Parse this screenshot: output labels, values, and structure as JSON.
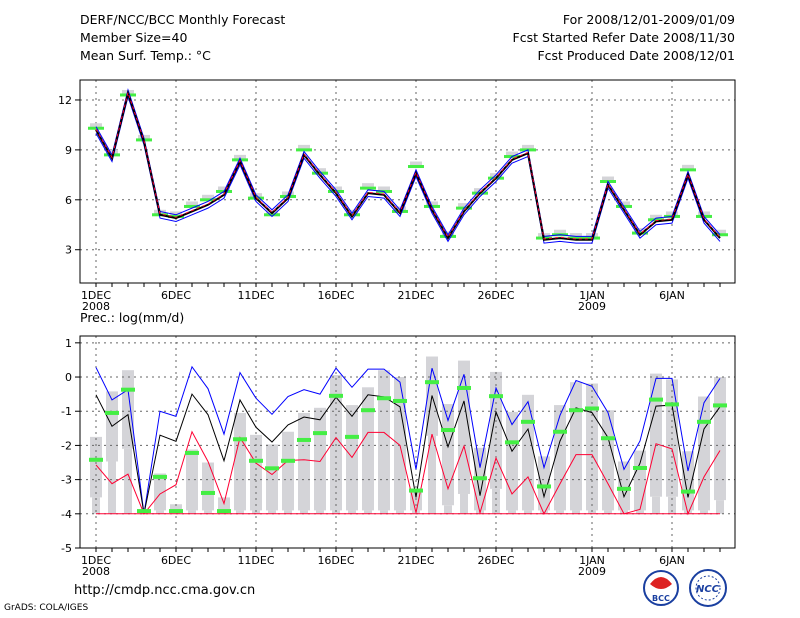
{
  "header": {
    "title": "DERF/NCC/BCC Monthly Forecast",
    "member_size": "Member Size=40",
    "variable": "Mean Surf. Temp.: °C",
    "period": "For 2008/12/01-2009/01/09",
    "started": "Fcst Started Refer Date 2008/11/30",
    "produced": "Fcst Produced Date 2008/12/01"
  },
  "footer": {
    "url": "http://cmdp.ncc.cma.gov.cn",
    "grads": "GrADS: COLA/IGES",
    "logo_bcc": "BCC",
    "logo_ncc": "NCC"
  },
  "colors": {
    "mean": "#000000",
    "spread": "#0000ff",
    "median": "#ff0033",
    "obs": "#44ee44",
    "bar": "#d4d4d8",
    "grid": "#666666"
  },
  "chart_data": [
    {
      "type": "line",
      "title": "Mean Surf. Temp.: °C",
      "x_ticks": [
        {
          "day": 0,
          "label": "1DEC",
          "sub": "2008"
        },
        {
          "day": 5,
          "label": "6DEC"
        },
        {
          "day": 10,
          "label": "11DEC"
        },
        {
          "day": 15,
          "label": "16DEC"
        },
        {
          "day": 20,
          "label": "21DEC"
        },
        {
          "day": 25,
          "label": "26DEC"
        },
        {
          "day": 31,
          "label": "1JAN",
          "sub": "2009"
        },
        {
          "day": 36,
          "label": "6JAN"
        }
      ],
      "y_ticks": [
        3,
        6,
        9,
        12
      ],
      "ylim": [
        1.0,
        13.2
      ],
      "grid": true,
      "series": [
        {
          "name": "ensemble-mean",
          "values": [
            10.2,
            8.5,
            12.4,
            9.5,
            5.1,
            4.9,
            5.3,
            5.7,
            6.3,
            8.3,
            6.1,
            5.2,
            6.1,
            8.7,
            7.5,
            6.4,
            5.0,
            6.4,
            6.3,
            5.2,
            7.6,
            5.4,
            3.7,
            5.3,
            6.4,
            7.3,
            8.4,
            8.8,
            3.6,
            3.7,
            3.6,
            3.6,
            6.9,
            5.4,
            3.9,
            4.7,
            4.8,
            7.5,
            4.8,
            3.7
          ]
        },
        {
          "name": "observed",
          "values": [
            10.3,
            8.7,
            12.3,
            9.6,
            5.1,
            5.0,
            5.6,
            6.0,
            6.5,
            8.4,
            6.1,
            5.1,
            6.2,
            9.0,
            7.6,
            6.5,
            5.1,
            6.7,
            6.5,
            5.3,
            8.0,
            5.6,
            3.8,
            5.5,
            6.4,
            7.3,
            8.6,
            9.0,
            3.7,
            3.9,
            3.7,
            3.7,
            7.1,
            5.6,
            4.0,
            4.8,
            5.0,
            7.8,
            5.0,
            3.9
          ]
        }
      ]
    },
    {
      "type": "line",
      "title": "Prec.: log(mm/d)",
      "x_ticks": [
        {
          "day": 0,
          "label": "1DEC",
          "sub": "2008"
        },
        {
          "day": 5,
          "label": "6DEC"
        },
        {
          "day": 10,
          "label": "11DEC"
        },
        {
          "day": 15,
          "label": "16DEC"
        },
        {
          "day": 20,
          "label": "21DEC"
        },
        {
          "day": 25,
          "label": "26DEC"
        },
        {
          "day": 31,
          "label": "1JAN",
          "sub": "2009"
        },
        {
          "day": 36,
          "label": "6JAN"
        }
      ],
      "y_ticks": [
        -5,
        -4,
        -3,
        -2,
        -1,
        0,
        1
      ],
      "ylim": [
        -5.0,
        1.2
      ],
      "grid": true,
      "baseline": -4,
      "series": [
        {
          "name": "upper",
          "values": [
            0.28,
            -0.67,
            -0.37,
            -4,
            -1.0,
            -1.15,
            0.3,
            -0.34,
            -1.67,
            0.13,
            -0.62,
            -1.09,
            -0.57,
            -0.37,
            -0.5,
            0.26,
            -0.3,
            0.23,
            0.23,
            -0.15,
            -2.7,
            0.26,
            -1.27,
            0.08,
            -2.65,
            -0.32,
            -1.39,
            -0.72,
            -2.65,
            -1.12,
            -0.1,
            -0.27,
            -1.04,
            -2.7,
            -1.87,
            -0.04,
            -0.04,
            -2.75,
            -0.75,
            -0.04
          ]
        },
        {
          "name": "mean",
          "values": [
            -0.52,
            -1.44,
            -1.1,
            -4,
            -1.7,
            -1.88,
            -0.5,
            -1.1,
            -2.45,
            -0.67,
            -1.47,
            -1.9,
            -1.4,
            -1.17,
            -1.25,
            -0.59,
            -1.15,
            -0.52,
            -0.58,
            -0.87,
            -3.52,
            -0.54,
            -2.04,
            -0.7,
            -3.47,
            -1.02,
            -2.17,
            -1.52,
            -3.5,
            -1.87,
            -0.9,
            -1.04,
            -1.77,
            -3.5,
            -2.52,
            -0.85,
            -0.82,
            -3.52,
            -1.52,
            -0.87
          ]
        },
        {
          "name": "lower",
          "values": [
            -2.57,
            -3.12,
            -2.84,
            -4,
            -3.42,
            -3.15,
            -1.6,
            -2.47,
            -3.7,
            -1.77,
            -2.52,
            -2.85,
            -2.44,
            -2.42,
            -2.47,
            -1.77,
            -2.35,
            -1.62,
            -1.62,
            -2.0,
            -3.97,
            -1.67,
            -3.27,
            -2.02,
            -3.97,
            -2.37,
            -3.42,
            -2.92,
            -4,
            -3.12,
            -2.27,
            -2.27,
            -3.12,
            -4,
            -3.87,
            -1.95,
            -2.1,
            -4,
            -2.92,
            -2.15
          ]
        },
        {
          "name": "observed",
          "values": [
            -2.42,
            -1.05,
            -0.37,
            -3.92,
            -2.92,
            -3.92,
            -2.22,
            -3.39,
            -3.92,
            -1.82,
            -2.45,
            -2.67,
            -2.45,
            -1.84,
            -1.64,
            -0.55,
            -1.75,
            -0.97,
            -0.62,
            -0.7,
            -3.32,
            -0.15,
            -1.55,
            -0.32,
            -2.96,
            -0.56,
            -1.91,
            -1.31,
            -3.2,
            -1.6,
            -0.97,
            -0.92,
            -1.79,
            -3.27,
            -2.66,
            -0.66,
            -0.8,
            -3.35,
            -1.31,
            -0.83
          ]
        },
        {
          "name": "range-top",
          "values": [
            -1.75,
            -0.42,
            0.2,
            -3.97,
            -2.82,
            -3.72,
            -2.12,
            -2.5,
            -3.52,
            -1.05,
            -1.69,
            -1.97,
            -1.6,
            -1.05,
            -0.9,
            0.06,
            -0.82,
            -0.3,
            0.2,
            0.0,
            -3.3,
            0.6,
            -0.79,
            0.48,
            -2.07,
            0.15,
            -1.02,
            -0.52,
            -2.32,
            -0.82,
            -0.15,
            -0.19,
            -0.97,
            -2.47,
            -2.15,
            0.1,
            -0.07,
            -2.17,
            -0.57,
            0.0
          ]
        },
        {
          "name": "range-mid",
          "values": [
            -3.52,
            -2.47,
            -2.1,
            -3.97,
            -3.9,
            -3.9,
            -3.9,
            -3.9,
            -3.9,
            -3.9,
            -3.9,
            -3.9,
            -3.9,
            -3.9,
            -3.9,
            -3.9,
            -3.9,
            -3.9,
            -3.9,
            -3.9,
            -3.9,
            -1.72,
            -3.75,
            -3.42,
            -3.9,
            -3.27,
            -3.9,
            -3.9,
            -3.9,
            -3.9,
            -3.9,
            -3.9,
            -3.9,
            -3.9,
            -3.9,
            -3.5,
            -3.5,
            -3.9,
            -3.9,
            -3.6
          ]
        }
      ]
    }
  ]
}
